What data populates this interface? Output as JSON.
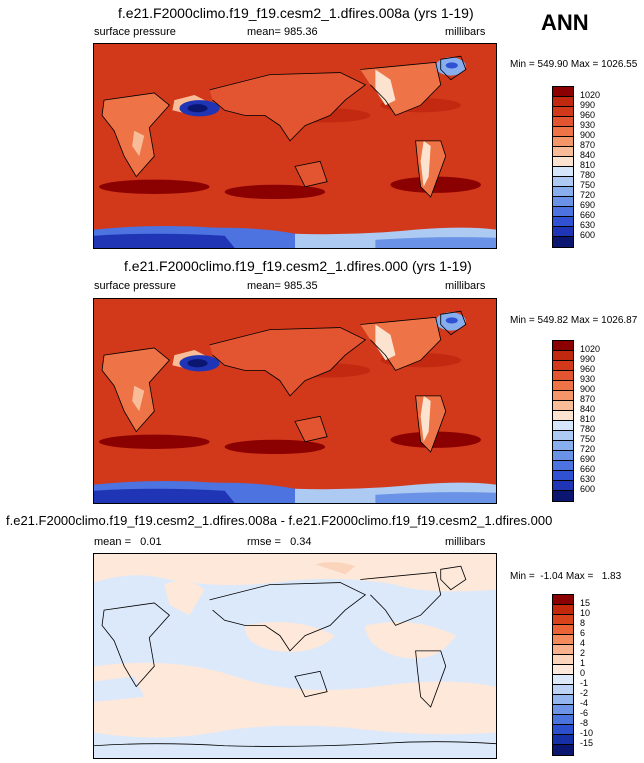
{
  "season": "ANN",
  "panels": [
    {
      "title": "f.e21.F2000climo.f19_f19.cesm2_1.dfires.008a (yrs 1-19)",
      "left_label": "surface pressure",
      "center_label": "mean= 985.36",
      "right_label": "millibars",
      "minmax": "Min = 549.90 Max = 1026.55",
      "colorbar": {
        "labels": [
          "1020",
          "990",
          "960",
          "930",
          "900",
          "870",
          "840",
          "810",
          "780",
          "750",
          "720",
          "690",
          "660",
          "630",
          "600"
        ],
        "colors": [
          "#8b0000",
          "#c0280f",
          "#d2381a",
          "#e25530",
          "#ee7346",
          "#f4966a",
          "#f8bd98",
          "#fbe3cf",
          "#d6e6fa",
          "#adcaf3",
          "#88aeed",
          "#6a92e6",
          "#4c73df",
          "#2f51d2",
          "#1f35b5",
          "#0b1670"
        ]
      }
    },
    {
      "title": "f.e21.F2000climo.f19_f19.cesm2_1.dfires.000 (yrs 1-19)",
      "left_label": "surface pressure",
      "center_label": "mean= 985.35",
      "right_label": "millibars",
      "minmax": "Min = 549.82 Max = 1026.87",
      "colorbar": {
        "labels": [
          "1020",
          "990",
          "960",
          "930",
          "900",
          "870",
          "840",
          "810",
          "780",
          "750",
          "720",
          "690",
          "660",
          "630",
          "600"
        ],
        "colors": [
          "#8b0000",
          "#c0280f",
          "#d2381a",
          "#e25530",
          "#ee7346",
          "#f4966a",
          "#f8bd98",
          "#fbe3cf",
          "#d6e6fa",
          "#adcaf3",
          "#88aeed",
          "#6a92e6",
          "#4c73df",
          "#2f51d2",
          "#1f35b5",
          "#0b1670"
        ]
      }
    },
    {
      "title": "f.e21.F2000climo.f19_f19.cesm2_1.dfires.008a - f.e21.F2000climo.f19_f19.cesm2_1.dfires.000",
      "left_label": "mean =   0.01",
      "center_label": "rmse =   0.34",
      "right_label": "millibars",
      "minmax": "Min =  -1.04 Max =   1.83",
      "colorbar": {
        "labels": [
          "15",
          "10",
          "8",
          "6",
          "4",
          "2",
          "1",
          "0",
          "-1",
          "-2",
          "-4",
          "-6",
          "-8",
          "-10",
          "-15"
        ],
        "colors": [
          "#8b0000",
          "#c4280a",
          "#d8431c",
          "#ea6435",
          "#f48b5d",
          "#f8b18c",
          "#fbd4bc",
          "#fde8da",
          "#dce9fb",
          "#bcd3f6",
          "#94b6ef",
          "#6d94e6",
          "#4a73dd",
          "#2c4fcc",
          "#1630a6",
          "#0b1670"
        ]
      }
    }
  ]
}
